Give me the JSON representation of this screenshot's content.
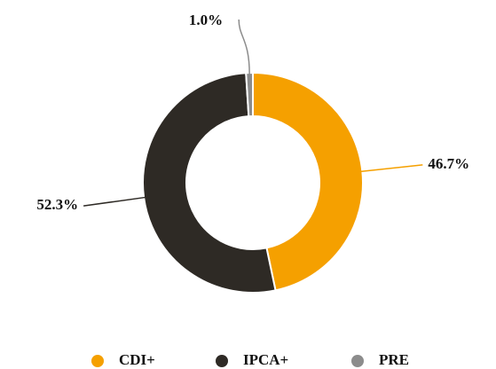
{
  "chart_data": {
    "type": "donut",
    "categories": [
      "CDI+",
      "IPCA+",
      "PRE"
    ],
    "values": [
      46.7,
      52.3,
      1.0
    ],
    "value_labels": [
      "46.7%",
      "52.3%",
      "1.0%"
    ],
    "colors": [
      "#f5a000",
      "#2e2a25",
      "#8c8c8c"
    ],
    "legend": "bottom"
  }
}
